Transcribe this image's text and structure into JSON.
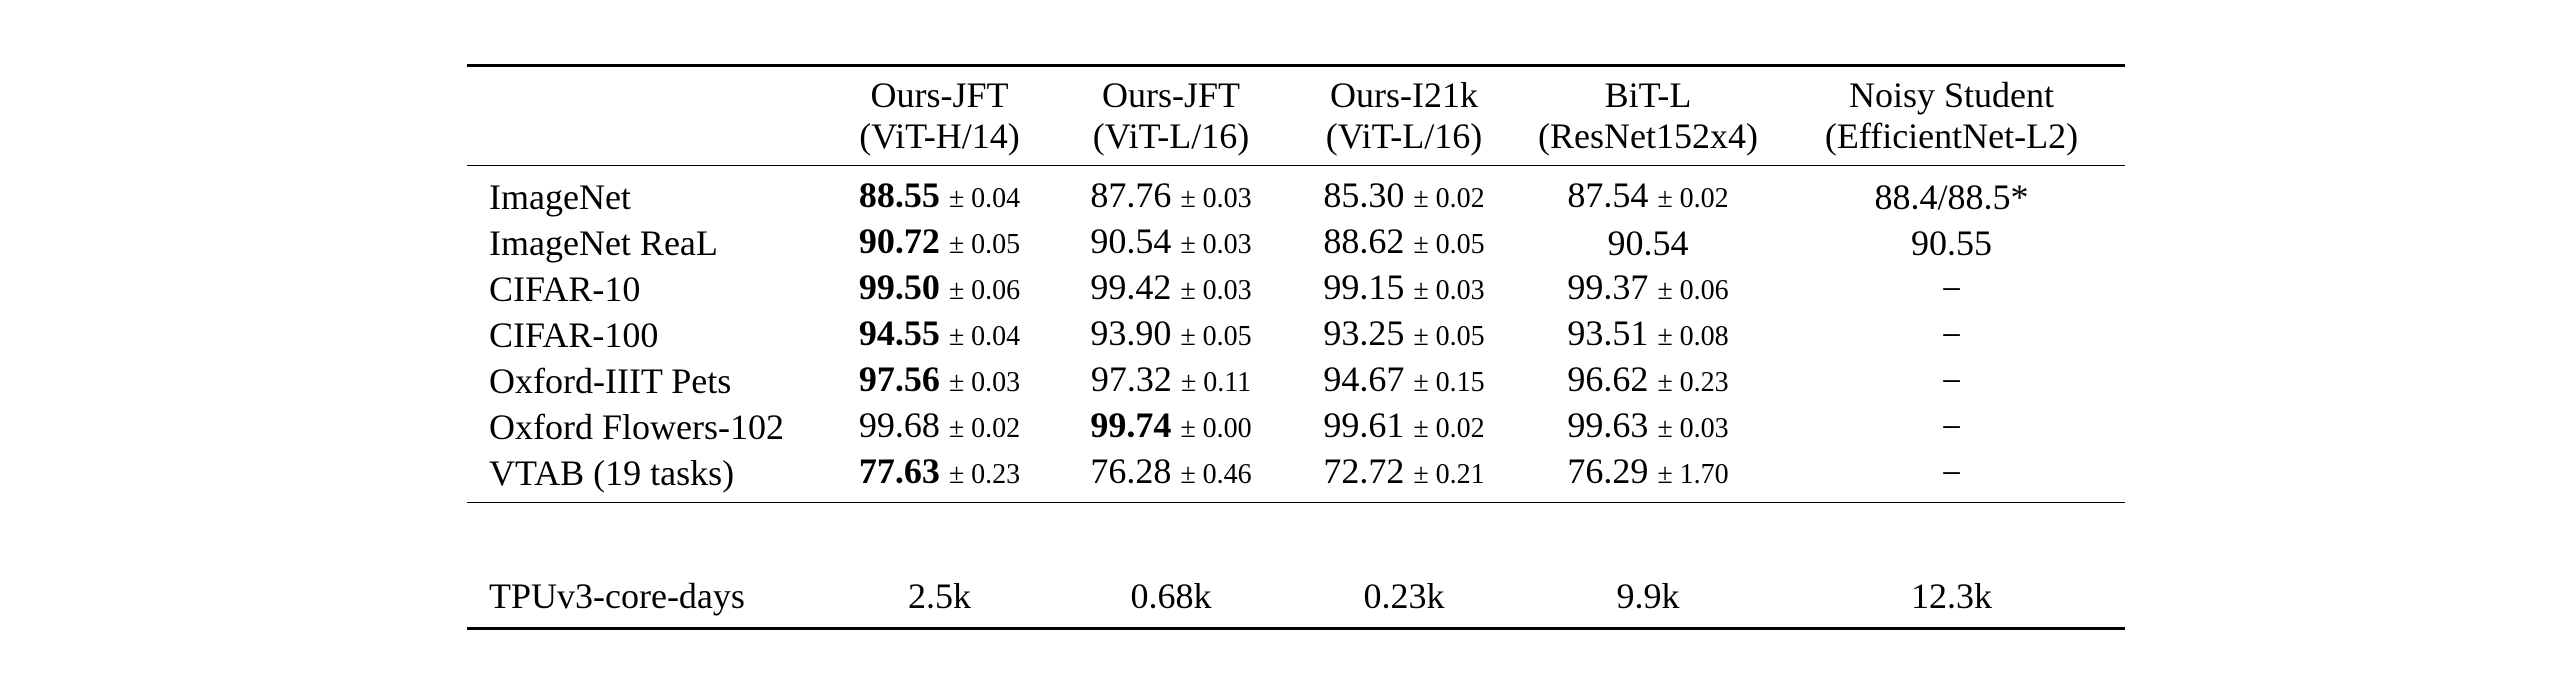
{
  "table": {
    "columns": [
      {
        "name": "Ours-JFT",
        "model": "(ViT-H/14)"
      },
      {
        "name": "Ours-JFT",
        "model": "(ViT-L/16)"
      },
      {
        "name": "Ours-I21k",
        "model": "(ViT-L/16)"
      },
      {
        "name": "BiT-L",
        "model": "(ResNet152x4)"
      },
      {
        "name": "Noisy Student",
        "model": "(EfficientNet-L2)"
      }
    ],
    "rows": [
      {
        "label": "ImageNet",
        "cells": [
          {
            "value": "88.55",
            "pm": "± 0.04",
            "best": true
          },
          {
            "value": "87.76",
            "pm": "± 0.03"
          },
          {
            "value": "85.30",
            "pm": "± 0.02"
          },
          {
            "value": "87.54",
            "pm": "± 0.02"
          },
          {
            "value": "88.4/88.5*",
            "pm": ""
          }
        ]
      },
      {
        "label": "ImageNet ReaL",
        "cells": [
          {
            "value": "90.72",
            "pm": "± 0.05",
            "best": true
          },
          {
            "value": "90.54",
            "pm": "± 0.03"
          },
          {
            "value": "88.62",
            "pm": "± 0.05"
          },
          {
            "value": "90.54",
            "pm": ""
          },
          {
            "value": "90.55",
            "pm": ""
          }
        ]
      },
      {
        "label": "CIFAR-10",
        "cells": [
          {
            "value": "99.50",
            "pm": "± 0.06",
            "best": true
          },
          {
            "value": "99.42",
            "pm": "± 0.03"
          },
          {
            "value": "99.15",
            "pm": "± 0.03"
          },
          {
            "value": "99.37",
            "pm": "± 0.06"
          },
          {
            "value": "−",
            "pm": ""
          }
        ]
      },
      {
        "label": "CIFAR-100",
        "cells": [
          {
            "value": "94.55",
            "pm": "± 0.04",
            "best": true
          },
          {
            "value": "93.90",
            "pm": "± 0.05"
          },
          {
            "value": "93.25",
            "pm": "± 0.05"
          },
          {
            "value": "93.51",
            "pm": "± 0.08"
          },
          {
            "value": "−",
            "pm": ""
          }
        ]
      },
      {
        "label": "Oxford-IIIT Pets",
        "cells": [
          {
            "value": "97.56",
            "pm": "± 0.03",
            "best": true
          },
          {
            "value": "97.32",
            "pm": "± 0.11"
          },
          {
            "value": "94.67",
            "pm": "± 0.15"
          },
          {
            "value": "96.62",
            "pm": "± 0.23"
          },
          {
            "value": "−",
            "pm": ""
          }
        ]
      },
      {
        "label": "Oxford Flowers-102",
        "cells": [
          {
            "value": "99.68",
            "pm": "± 0.02"
          },
          {
            "value": "99.74",
            "pm": "± 0.00",
            "best": true
          },
          {
            "value": "99.61",
            "pm": "± 0.02"
          },
          {
            "value": "99.63",
            "pm": "± 0.03"
          },
          {
            "value": "−",
            "pm": ""
          }
        ]
      },
      {
        "label": "VTAB (19 tasks)",
        "cells": [
          {
            "value": "77.63",
            "pm": "± 0.23",
            "best": true
          },
          {
            "value": "76.28",
            "pm": "± 0.46"
          },
          {
            "value": "72.72",
            "pm": "± 0.21"
          },
          {
            "value": "76.29",
            "pm": "± 1.70"
          },
          {
            "value": "−",
            "pm": ""
          }
        ]
      }
    ],
    "footer": {
      "label": "TPUv3-core-days",
      "values": [
        "2.5k",
        "0.68k",
        "0.23k",
        "9.9k",
        "12.3k"
      ]
    }
  }
}
